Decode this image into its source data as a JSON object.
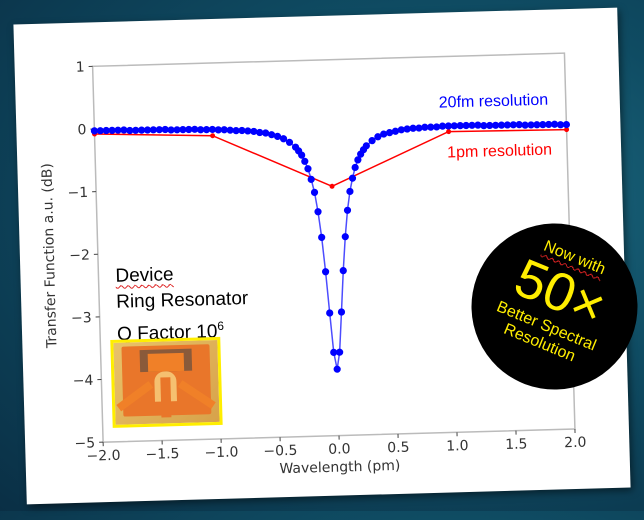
{
  "chart_data": {
    "type": "line",
    "xlabel": "Wavelength (pm)",
    "ylabel": "Transfer Function a.u. (dB)",
    "xlim": [
      -2.0,
      2.0
    ],
    "ylim": [
      -5,
      1
    ],
    "x_ticks": [
      "−2.0",
      "−1.5",
      "−1.0",
      "−0.5",
      "0.0",
      "0.5",
      "1.0",
      "1.5",
      "2.0"
    ],
    "x_tick_values": [
      -2.0,
      -1.5,
      -1.0,
      -0.5,
      0.0,
      0.5,
      1.0,
      1.5,
      2.0
    ],
    "y_ticks": [
      "1",
      "0",
      "−1",
      "−2",
      "−3",
      "−4",
      "−5"
    ],
    "y_tick_values": [
      1,
      0,
      -1,
      -2,
      -3,
      -4,
      -5
    ],
    "grid": false,
    "series": [
      {
        "name": "20fm resolution",
        "color": "#0000ff",
        "marker": "circle",
        "x": [
          -2.0,
          -1.95,
          -1.9,
          -1.85,
          -1.8,
          -1.75,
          -1.7,
          -1.65,
          -1.6,
          -1.55,
          -1.5,
          -1.45,
          -1.4,
          -1.35,
          -1.3,
          -1.25,
          -1.2,
          -1.15,
          -1.1,
          -1.05,
          -1.0,
          -0.95,
          -0.9,
          -0.85,
          -0.8,
          -0.75,
          -0.7,
          -0.65,
          -0.6,
          -0.55,
          -0.5,
          -0.45,
          -0.4,
          -0.35,
          -0.3,
          -0.275,
          -0.25,
          -0.225,
          -0.2,
          -0.175,
          -0.15,
          -0.125,
          -0.1,
          -0.075,
          -0.05,
          -0.025,
          0,
          0.025,
          0.05,
          0.075,
          0.1,
          0.125,
          0.15,
          0.175,
          0.2,
          0.225,
          0.25,
          0.275,
          0.3,
          0.35,
          0.4,
          0.45,
          0.5,
          0.55,
          0.6,
          0.65,
          0.7,
          0.75,
          0.8,
          0.85,
          0.9,
          0.95,
          1.0,
          1.05,
          1.1,
          1.15,
          1.2,
          1.25,
          1.3,
          1.35,
          1.4,
          1.45,
          1.5,
          1.55,
          1.6,
          1.65,
          1.7,
          1.75,
          1.8,
          1.85,
          1.9,
          1.95,
          2.0
        ],
        "y": [
          -0.03,
          -0.03,
          -0.03,
          -0.03,
          -0.03,
          -0.03,
          -0.04,
          -0.04,
          -0.04,
          -0.04,
          -0.04,
          -0.04,
          -0.04,
          -0.05,
          -0.05,
          -0.05,
          -0.05,
          -0.05,
          -0.06,
          -0.06,
          -0.06,
          -0.07,
          -0.07,
          -0.08,
          -0.09,
          -0.09,
          -0.1,
          -0.11,
          -0.13,
          -0.14,
          -0.17,
          -0.2,
          -0.24,
          -0.3,
          -0.38,
          -0.44,
          -0.51,
          -0.61,
          -0.73,
          -0.9,
          -1.11,
          -1.42,
          -1.83,
          -2.38,
          -3.04,
          -3.67,
          -3.94,
          -3.67,
          -3.03,
          -2.37,
          -1.83,
          -1.41,
          -1.11,
          -0.9,
          -0.73,
          -0.61,
          -0.52,
          -0.45,
          -0.39,
          -0.31,
          -0.25,
          -0.21,
          -0.19,
          -0.17,
          -0.15,
          -0.14,
          -0.13,
          -0.13,
          -0.12,
          -0.12,
          -0.12,
          -0.11,
          -0.11,
          -0.11,
          -0.11,
          -0.11,
          -0.11,
          -0.11,
          -0.12,
          -0.12,
          -0.12,
          -0.12,
          -0.12,
          -0.12,
          -0.12,
          -0.13,
          -0.13,
          -0.13,
          -0.13,
          -0.13,
          -0.13,
          -0.14,
          -0.14
        ]
      },
      {
        "name": "1pm resolution",
        "color": "#ff0000",
        "marker": "dot",
        "x": [
          -2.0,
          -1.0,
          0.0,
          1.0,
          2.0
        ],
        "y": [
          -0.08,
          -0.16,
          -1.02,
          -0.2,
          -0.22
        ]
      }
    ],
    "annotations": {
      "device": "Device",
      "type": "Ring Resonator",
      "q_factor_label": "Q Factor 10",
      "q_factor_exp": "6"
    }
  },
  "badge": {
    "line1": "Now with",
    "big": "50×",
    "line2": "Better Spectral",
    "line3": "Resolution",
    "bg": "#000000",
    "fg": "#ffee00"
  }
}
